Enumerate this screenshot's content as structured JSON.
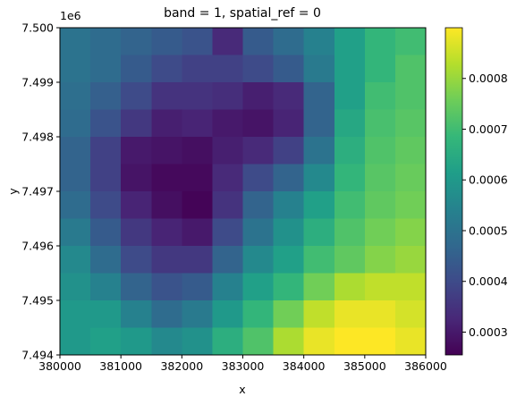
{
  "chart_data": {
    "type": "heatmap",
    "title": "band = 1, spatial_ref = 0",
    "xlabel": "x",
    "ylabel": "y",
    "y_offset_label": "1e6",
    "cmap": "viridis",
    "x": [
      380250,
      380750,
      381250,
      381750,
      382250,
      382750,
      383250,
      383750,
      384250,
      384750,
      385250,
      385750
    ],
    "y": [
      7499750,
      7499250,
      7498750,
      7498250,
      7497750,
      7497250,
      7496750,
      7496250,
      7495750,
      7495250,
      7494750,
      7494250
    ],
    "values": [
      [
        0.0005,
        0.00048,
        0.00046,
        0.00044,
        0.00042,
        0.00033,
        0.00044,
        0.00048,
        0.00054,
        0.00062,
        0.00068,
        0.0007
      ],
      [
        0.0005,
        0.00048,
        0.00044,
        0.0004,
        0.00038,
        0.00038,
        0.0004,
        0.00044,
        0.00052,
        0.00062,
        0.00068,
        0.00072
      ],
      [
        0.00049,
        0.00045,
        0.0004,
        0.00035,
        0.00035,
        0.00034,
        0.00031,
        0.00033,
        0.00046,
        0.00062,
        0.0007,
        0.00072
      ],
      [
        0.00048,
        0.00042,
        0.00036,
        0.00031,
        0.00032,
        0.0003,
        0.00029,
        0.00032,
        0.00046,
        0.00064,
        0.00071,
        0.00073
      ],
      [
        0.00046,
        0.00038,
        0.0003,
        0.00029,
        0.00028,
        0.00031,
        0.00033,
        0.00038,
        0.0005,
        0.00066,
        0.00072,
        0.00074
      ],
      [
        0.00046,
        0.00038,
        0.00029,
        0.00027,
        0.00027,
        0.00033,
        0.0004,
        0.00046,
        0.00056,
        0.00068,
        0.00073,
        0.00075
      ],
      [
        0.00048,
        0.0004,
        0.00032,
        0.00028,
        0.00026,
        0.00035,
        0.00046,
        0.00054,
        0.00062,
        0.0007,
        0.00074,
        0.00076
      ],
      [
        0.00052,
        0.00044,
        0.00036,
        0.00032,
        0.0003,
        0.0004,
        0.0005,
        0.00058,
        0.00066,
        0.00072,
        0.00076,
        0.00078
      ],
      [
        0.00056,
        0.00048,
        0.0004,
        0.00036,
        0.00036,
        0.00046,
        0.00056,
        0.00062,
        0.0007,
        0.00074,
        0.00078,
        0.0008
      ],
      [
        0.00058,
        0.00054,
        0.00046,
        0.00042,
        0.00044,
        0.00054,
        0.00062,
        0.00068,
        0.00076,
        0.00082,
        0.00084,
        0.00084
      ],
      [
        0.0006,
        0.0006,
        0.00054,
        0.00048,
        0.00052,
        0.0006,
        0.00068,
        0.00076,
        0.00084,
        0.00088,
        0.00088,
        0.00086
      ],
      [
        0.0006,
        0.00062,
        0.0006,
        0.00056,
        0.00058,
        0.00066,
        0.00072,
        0.00082,
        0.00088,
        0.0009,
        0.0009,
        0.00088
      ]
    ],
    "xlim": [
      380000,
      386000
    ],
    "ylim": [
      7494000,
      7500000
    ],
    "xticks": [
      380000,
      381000,
      382000,
      383000,
      384000,
      385000,
      386000
    ],
    "yticks": [
      {
        "value": 7494000,
        "label": "7.494"
      },
      {
        "value": 7495000,
        "label": "7.495"
      },
      {
        "value": 7496000,
        "label": "7.496"
      },
      {
        "value": 7497000,
        "label": "7.497"
      },
      {
        "value": 7498000,
        "label": "7.498"
      },
      {
        "value": 7499000,
        "label": "7.499"
      },
      {
        "value": 7500000,
        "label": "7.500"
      }
    ],
    "colorbar": {
      "lim": [
        0.000255,
        0.0009
      ],
      "ticks": [
        0.0003,
        0.0004,
        0.0005,
        0.0006,
        0.0007,
        0.0008
      ]
    }
  }
}
